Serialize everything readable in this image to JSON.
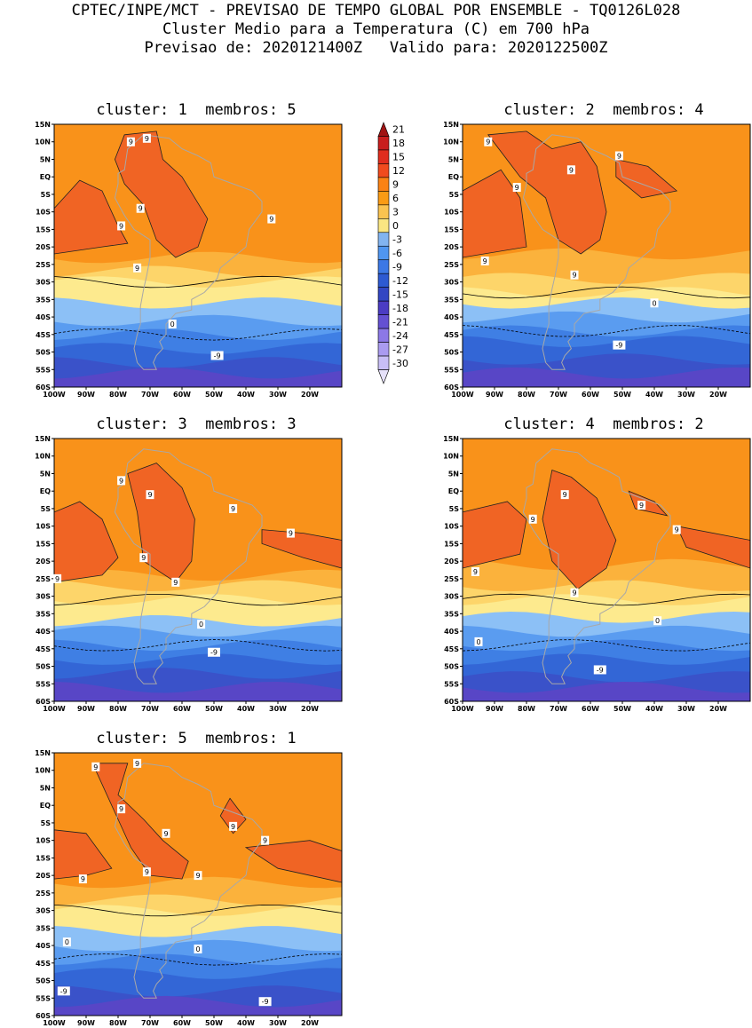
{
  "header": {
    "line1": "CPTEC/INPE/MCT - PREVISAO DE TEMPO GLOBAL POR ENSEMBLE - TQ0126L028",
    "line2": "Cluster Medio para a Temperatura (C) em 700 hPa",
    "line3": "Previsao de: 2020121400Z   Valido para: 2020122500Z"
  },
  "panels": [
    {
      "title": "cluster: 1  membros: 5",
      "labels": [
        {
          "t": "9",
          "lon": -71,
          "lat": 11
        },
        {
          "t": "9",
          "lon": -76,
          "lat": 10
        },
        {
          "t": "9",
          "lon": -73,
          "lat": -9
        },
        {
          "t": "9",
          "lon": -79,
          "lat": -14
        },
        {
          "t": "9",
          "lon": -74,
          "lat": -26
        },
        {
          "t": "9",
          "lon": -32,
          "lat": -12
        },
        {
          "t": "0",
          "lon": -63,
          "lat": -42
        },
        {
          "t": "-9",
          "lon": -49,
          "lat": -51
        }
      ]
    },
    {
      "title": "cluster: 2  membros: 4",
      "labels": [
        {
          "t": "9",
          "lon": -92,
          "lat": 10
        },
        {
          "t": "9",
          "lon": -66,
          "lat": 2
        },
        {
          "t": "9",
          "lon": -51,
          "lat": 6
        },
        {
          "t": "9",
          "lon": -83,
          "lat": -3
        },
        {
          "t": "9",
          "lon": -93,
          "lat": -24
        },
        {
          "t": "9",
          "lon": -65,
          "lat": -28
        },
        {
          "t": "0",
          "lon": -40,
          "lat": -36
        },
        {
          "t": "-9",
          "lon": -51,
          "lat": -48
        }
      ]
    },
    {
      "title": "cluster: 3  membros: 3",
      "labels": [
        {
          "t": "9",
          "lon": -79,
          "lat": 3
        },
        {
          "t": "9",
          "lon": -70,
          "lat": -1
        },
        {
          "t": "9",
          "lon": -99,
          "lat": -25
        },
        {
          "t": "9",
          "lon": -72,
          "lat": -19
        },
        {
          "t": "9",
          "lon": -62,
          "lat": -26
        },
        {
          "t": "9",
          "lon": -44,
          "lat": -5
        },
        {
          "t": "9",
          "lon": -26,
          "lat": -12
        },
        {
          "t": "0",
          "lon": -54,
          "lat": -38
        },
        {
          "t": "-9",
          "lon": -50,
          "lat": -46
        }
      ]
    },
    {
      "title": "cluster: 4  membros: 2",
      "labels": [
        {
          "t": "9",
          "lon": -68,
          "lat": -1
        },
        {
          "t": "9",
          "lon": -78,
          "lat": -8
        },
        {
          "t": "9",
          "lon": -44,
          "lat": -4
        },
        {
          "t": "9",
          "lon": -33,
          "lat": -11
        },
        {
          "t": "9",
          "lon": -96,
          "lat": -23
        },
        {
          "t": "9",
          "lon": -65,
          "lat": -29
        },
        {
          "t": "0",
          "lon": -39,
          "lat": -37
        },
        {
          "t": "0",
          "lon": -95,
          "lat": -43
        },
        {
          "t": "-9",
          "lon": -57,
          "lat": -51
        }
      ]
    },
    {
      "title": "cluster: 5  membros: 1",
      "labels": [
        {
          "t": "9",
          "lon": -87,
          "lat": 11
        },
        {
          "t": "9",
          "lon": -74,
          "lat": 12
        },
        {
          "t": "9",
          "lon": -79,
          "lat": -1
        },
        {
          "t": "9",
          "lon": -65,
          "lat": -8
        },
        {
          "t": "9",
          "lon": -44,
          "lat": -6
        },
        {
          "t": "9",
          "lon": -34,
          "lat": -10
        },
        {
          "t": "9",
          "lon": -71,
          "lat": -19
        },
        {
          "t": "9",
          "lon": -91,
          "lat": -21
        },
        {
          "t": "9",
          "lon": -55,
          "lat": -20
        },
        {
          "t": "0",
          "lon": -96,
          "lat": -39
        },
        {
          "t": "0",
          "lon": -55,
          "lat": -41
        },
        {
          "t": "-9",
          "lon": -97,
          "lat": -53
        },
        {
          "t": "-9",
          "lon": -34,
          "lat": -56
        }
      ]
    }
  ],
  "map": {
    "lat_ticks": [
      "15N",
      "10N",
      "5N",
      "EQ",
      "5S",
      "10S",
      "15S",
      "20S",
      "25S",
      "30S",
      "35S",
      "40S",
      "45S",
      "50S",
      "55S",
      "60S"
    ],
    "lon_ticks": [
      "100W",
      "90W",
      "80W",
      "70W",
      "60W",
      "50W",
      "40W",
      "30W",
      "20W"
    ],
    "lon_range": [
      -100,
      -10
    ],
    "lat_range": [
      -60,
      15
    ]
  },
  "colorbar": {
    "levels": [
      "21",
      "18",
      "15",
      "12",
      "9",
      "6",
      "3",
      "0",
      "-3",
      "-6",
      "-9",
      "-12",
      "-15",
      "-18",
      "-21",
      "-24",
      "-27",
      "-30"
    ],
    "colors": [
      "#a01414",
      "#c81e1e",
      "#e02d1e",
      "#f04b1e",
      "#fa8214",
      "#fa9b14",
      "#fac350",
      "#fae682",
      "#82b4f0",
      "#5096f0",
      "#3c78e6",
      "#2d5ad2",
      "#3246c3",
      "#4b3cc3",
      "#6450d2",
      "#8c78e6",
      "#aa9bf0",
      "#c8bef5",
      "#e6e1fa"
    ]
  },
  "regions": {
    "temps_desc": "field levels in C used for shading",
    "bands": [
      {
        "level": "12",
        "color": "#f06424"
      },
      {
        "level": "9",
        "color": "#f9921a"
      },
      {
        "level": "6",
        "color": "#fbb23c"
      },
      {
        "level": "3",
        "color": "#fdd56a"
      },
      {
        "level": "0",
        "color": "#fdea8e"
      },
      {
        "level": "-3",
        "color": "#8cc0f6"
      },
      {
        "level": "-6",
        "color": "#5a9cf0"
      },
      {
        "level": "-9",
        "color": "#3f7fe4"
      },
      {
        "level": "-12",
        "color": "#3366d6"
      },
      {
        "level": "-15",
        "color": "#3a52c9"
      },
      {
        "level": "-18",
        "color": "#5846c6"
      }
    ]
  }
}
